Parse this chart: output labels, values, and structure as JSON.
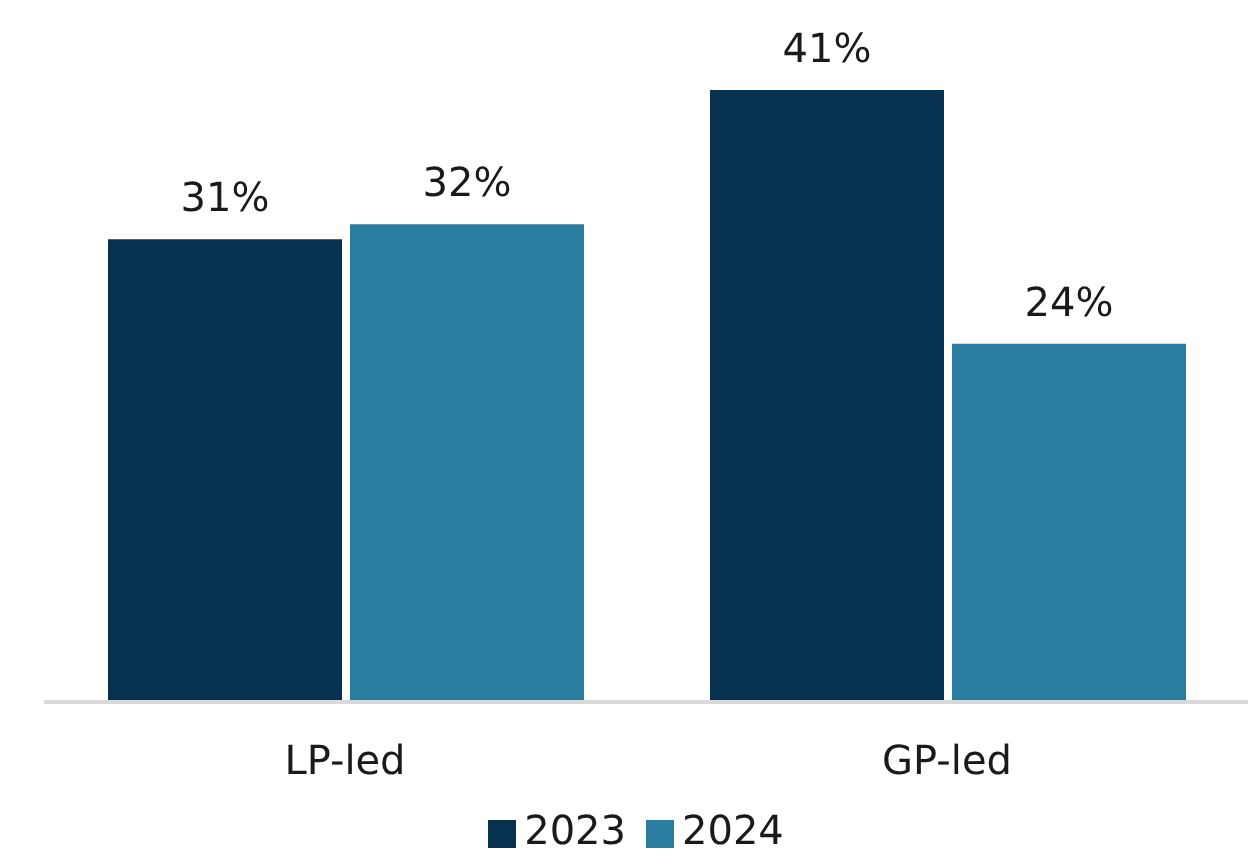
{
  "chart_data": {
    "type": "bar",
    "categories": [
      "LP-led",
      "GP-led"
    ],
    "series": [
      {
        "name": "2023",
        "color": "#06314f",
        "values": [
          31,
          41
        ],
        "value_labels": [
          "31%",
          "41%"
        ]
      },
      {
        "name": "2024",
        "color": "#2a7d9f",
        "values": [
          32,
          24
        ],
        "value_labels": [
          "32%",
          "24%"
        ]
      }
    ],
    "legend": "bottom"
  }
}
